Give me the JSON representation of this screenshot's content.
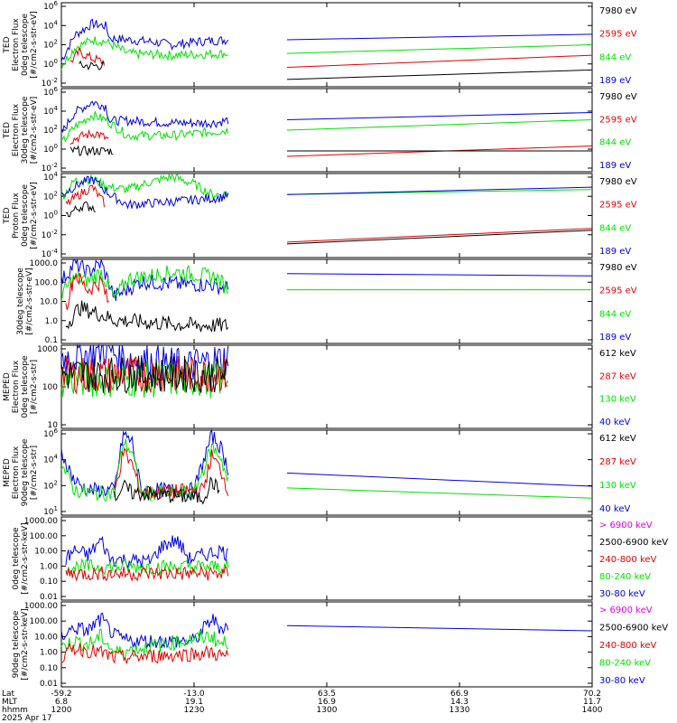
{
  "colors": {
    "black": "#000000",
    "red": "#e00000",
    "green": "#00e000",
    "blue": "#0000e0",
    "magenta": "#e000e0"
  },
  "footer": {
    "row_labels": [
      "Lat",
      "MLT",
      "hhmm",
      "2025 Apr 17"
    ],
    "ticks": [
      {
        "lat": "-59.2",
        "mlt": "6.8",
        "hhmm": "1200"
      },
      {
        "lat": "-13.0",
        "mlt": "19.1",
        "hhmm": "1230"
      },
      {
        "lat": "63.5",
        "mlt": "16.9",
        "hhmm": "1300"
      },
      {
        "lat": "66.9",
        "mlt": "14.3",
        "hhmm": "1330"
      },
      {
        "lat": "70.2",
        "mlt": "11.7",
        "hhmm": "1400"
      }
    ]
  },
  "chart_data": [
    {
      "type": "line",
      "scale": "log",
      "ylabel": [
        "TED",
        "Electron Flux",
        "0deg telescope",
        "[#/cm2-s-str-eV]"
      ],
      "yticks": [
        "10^6",
        "10^4",
        "10^2",
        "10^0",
        "10^-2"
      ],
      "ylim": [
        0.01,
        1000000
      ],
      "legend": [
        {
          "name": "7980 eV",
          "color": "black"
        },
        {
          "name": "2595 eV",
          "color": "red"
        },
        {
          "name": "844 eV",
          "color": "green"
        },
        {
          "name": "189 eV",
          "color": "blue"
        }
      ],
      "series": [
        {
          "name": "189 eV",
          "color": "blue",
          "x": [
            1200,
            1203,
            1207,
            1210,
            1211,
            1215,
            1220,
            1225,
            1231,
            1238
          ],
          "y": [
            3,
            800,
            10000,
            6000,
            400,
            300,
            200,
            100,
            200,
            300
          ],
          "tail": [
            300,
            1000
          ]
        },
        {
          "name": "844 eV",
          "color": "green",
          "x": [
            1200,
            1203,
            1207,
            1210,
            1215,
            1225,
            1238
          ],
          "y": [
            1,
            50,
            300,
            200,
            15,
            10,
            15
          ],
          "tail": [
            15,
            100
          ]
        },
        {
          "name": "2595 eV",
          "color": "red",
          "x": [
            1202,
            1204,
            1207,
            1210
          ],
          "y": [
            2,
            20,
            5,
            2
          ],
          "tail": [
            0.7,
            10
          ]
        },
        {
          "name": "7980 eV",
          "color": "black",
          "x": [
            1204,
            1210
          ],
          "y": [
            1,
            1
          ],
          "tail": [
            0.05,
            0.4
          ]
        }
      ]
    },
    {
      "type": "line",
      "scale": "log",
      "ylabel": [
        "TED",
        "Electron Flux",
        "30deg telescope",
        "[#/cm2-s-str-eV]"
      ],
      "yticks": [
        "10^6",
        "10^4",
        "10^2",
        "10^0",
        "10^-2"
      ],
      "ylim": [
        0.01,
        1000000
      ],
      "legend": [
        {
          "name": "7980 eV",
          "color": "black"
        },
        {
          "name": "2595 eV",
          "color": "red"
        },
        {
          "name": "844 eV",
          "color": "green"
        },
        {
          "name": "189 eV",
          "color": "blue"
        }
      ],
      "series": [
        {
          "name": "189 eV",
          "color": "blue",
          "x": [
            1200,
            1203,
            1207,
            1210,
            1211,
            1215,
            1225,
            1235,
            1238
          ],
          "y": [
            50,
            5000,
            50000,
            20000,
            800,
            800,
            500,
            500,
            1000
          ],
          "tail": [
            1000,
            5000
          ]
        },
        {
          "name": "844 eV",
          "color": "green",
          "x": [
            1200,
            1203,
            1207,
            1210,
            1215,
            1225,
            1238
          ],
          "y": [
            5,
            200,
            3000,
            1000,
            30,
            30,
            100
          ],
          "tail": [
            100,
            1000
          ]
        },
        {
          "name": "2595 eV",
          "color": "red",
          "x": [
            1202,
            1205,
            1208,
            1211
          ],
          "y": [
            10,
            30,
            50,
            10
          ],
          "tail": [
            0.3,
            3
          ]
        },
        {
          "name": "7980 eV",
          "color": "black",
          "x": [
            1202,
            1212
          ],
          "y": [
            1,
            1
          ],
          "tail": [
            1,
            1
          ]
        }
      ]
    },
    {
      "type": "line",
      "scale": "log",
      "ylabel": [
        "TED",
        "Proton Flux",
        "0deg telescope",
        "[#/cm2-s-str-eV]"
      ],
      "yticks": [
        "10^4",
        "10^2",
        "10^0",
        "10^-2",
        "10^-4"
      ],
      "ylim": [
        0.0001,
        10000
      ],
      "legend": [
        {
          "name": "7980 eV",
          "color": "black"
        },
        {
          "name": "2595 eV",
          "color": "red"
        },
        {
          "name": "844 eV",
          "color": "green"
        },
        {
          "name": "189 eV",
          "color": "blue"
        }
      ],
      "series": [
        {
          "name": "844 eV",
          "color": "green",
          "x": [
            1200,
            1203,
            1207,
            1211,
            1215,
            1220,
            1225,
            1230,
            1234,
            1238
          ],
          "y": [
            50,
            2000,
            3000,
            500,
            300,
            1500,
            5000,
            1000,
            100,
            100
          ],
          "tail": [
            100,
            300
          ]
        },
        {
          "name": "189 eV",
          "color": "blue",
          "x": [
            1200,
            1204,
            1207,
            1211,
            1215,
            1236,
            1238
          ],
          "y": [
            100,
            1000,
            3000,
            100,
            10,
            50,
            100
          ],
          "tail": [
            100,
            500
          ]
        },
        {
          "name": "2595 eV",
          "color": "red",
          "x": [
            1201,
            1204,
            1207,
            1210
          ],
          "y": [
            10,
            100,
            500,
            10
          ],
          "tail": [
            0.003,
            0.06
          ]
        },
        {
          "name": "7980 eV",
          "color": "black",
          "x": [
            1201,
            1205,
            1208
          ],
          "y": [
            1,
            10,
            5
          ],
          "tail": [
            0.002,
            0.04
          ]
        }
      ]
    },
    {
      "type": "line",
      "scale": "log",
      "ylabel": [
        "",
        "30deg telescope",
        "[#/cm2-s-str-eV]"
      ],
      "yticks": [
        "1000.0",
        "100.0",
        "10.0",
        "1.0",
        "0.1"
      ],
      "ylim": [
        0.1,
        5000
      ],
      "legend": [
        {
          "name": "7980 eV",
          "color": "black"
        },
        {
          "name": "2595 eV",
          "color": "red"
        },
        {
          "name": "844 eV",
          "color": "green"
        },
        {
          "name": "189 eV",
          "color": "blue"
        }
      ],
      "series": [
        {
          "name": "189 eV",
          "color": "blue",
          "x": [
            1200,
            1203,
            1206,
            1209,
            1212,
            1218,
            1226,
            1234,
            1238
          ],
          "y": [
            300,
            3000,
            1000,
            3000,
            40,
            300,
            200,
            200,
            100
          ],
          "tail": [
            800,
            600
          ]
        },
        {
          "name": "844 eV",
          "color": "green",
          "x": [
            1200,
            1203,
            1206,
            1209,
            1212,
            1215,
            1226,
            1235,
            1238
          ],
          "y": [
            50,
            500,
            300,
            1000,
            30,
            400,
            1000,
            500,
            100
          ],
          "tail": [
            100,
            100
          ]
        },
        {
          "name": "2595 eV",
          "color": "red",
          "x": [
            1201,
            1203,
            1206,
            1209,
            1211
          ],
          "y": [
            10,
            800,
            100,
            300,
            10
          ],
          "tail": []
        },
        {
          "name": "7980 eV",
          "color": "black",
          "x": [
            1201,
            1204,
            1208,
            1212,
            1230,
            1238
          ],
          "y": [
            1,
            10,
            5,
            2,
            1,
            1
          ],
          "tail": []
        }
      ]
    },
    {
      "type": "line",
      "scale": "log",
      "ylabel": [
        "MEPED",
        "Electron Flux",
        "0deg telescope",
        "[#/cm2-s-str]"
      ],
      "yticks": [
        "1000",
        "100",
        "10"
      ],
      "ylim": [
        10,
        1000
      ],
      "legend": [
        {
          "name": "612 keV",
          "color": "black"
        },
        {
          "name": "287 keV",
          "color": "red"
        },
        {
          "name": "130 keV",
          "color": "green"
        },
        {
          "name": "40 keV",
          "color": "blue"
        }
      ],
      "series": [
        {
          "name": "40 keV",
          "color": "blue",
          "x": [
            1200,
            1206,
            1210,
            1215,
            1220,
            1228,
            1238
          ],
          "y": [
            500,
            600,
            800,
            500,
            400,
            300,
            500
          ],
          "tail": []
        },
        {
          "name": "130 keV",
          "color": "green",
          "x": [
            1200,
            1238
          ],
          "y": [
            150,
            150
          ],
          "tail": []
        },
        {
          "name": "287 keV",
          "color": "red",
          "x": [
            1200,
            1238
          ],
          "y": [
            200,
            200
          ],
          "tail": []
        },
        {
          "name": "612 keV",
          "color": "black",
          "x": [
            1200,
            1238
          ],
          "y": [
            200,
            200
          ],
          "tail": []
        }
      ]
    },
    {
      "type": "line",
      "scale": "log",
      "ylabel": [
        "MEPED",
        "Electron Flux",
        "90deg telescope",
        "[#/cm2-s-str]"
      ],
      "yticks": [
        "10^6",
        "10^4",
        "10^2",
        "10^1"
      ],
      "ylim": [
        10,
        1000000
      ],
      "legend": [
        {
          "name": "612 keV",
          "color": "black"
        },
        {
          "name": "287 keV",
          "color": "red"
        },
        {
          "name": "130 keV",
          "color": "green"
        },
        {
          "name": "40 keV",
          "color": "blue"
        }
      ],
      "series": [
        {
          "name": "40 keV",
          "color": "blue",
          "x": [
            1200,
            1203,
            1206,
            1212,
            1214,
            1216,
            1218,
            1222,
            1230,
            1234,
            1236,
            1238
          ],
          "y": [
            50000,
            1000,
            300,
            300,
            600000,
            200000,
            300,
            300,
            300,
            500000,
            100000,
            3000
          ],
          "tail": [
            3000,
            500
          ]
        },
        {
          "name": "130 keV",
          "color": "green",
          "x": [
            1200,
            1203,
            1206,
            1212,
            1214,
            1216,
            1218,
            1230,
            1234,
            1236,
            1238
          ],
          "y": [
            10000,
            300,
            200,
            200,
            200000,
            50000,
            200,
            200,
            100000,
            30000,
            400
          ],
          "tail": [
            400,
            100
          ]
        },
        {
          "name": "287 keV",
          "color": "red",
          "x": [
            1212,
            1214,
            1216,
            1218,
            1232,
            1234,
            1236,
            1238
          ],
          "y": [
            200,
            50000,
            10000,
            200,
            300,
            30000,
            5000,
            200
          ],
          "tail": []
        },
        {
          "name": "612 keV",
          "color": "black",
          "x": [
            1212,
            1214,
            1216,
            1232,
            1234,
            1236
          ],
          "y": [
            100,
            500,
            200,
            100,
            1000,
            200
          ],
          "tail": []
        }
      ]
    },
    {
      "type": "line",
      "scale": "log",
      "ylabel": [
        "0deg telescope",
        "[#/cm2-s-str-keV]"
      ],
      "yticks": [
        "1000.00",
        "100.00",
        "10.00",
        "1.00",
        "0.10",
        "0.01"
      ],
      "ylim": [
        0.01,
        1000
      ],
      "legend": [
        {
          "name": "> 6900 keV",
          "color": "magenta"
        },
        {
          "name": "2500-6900 keV",
          "color": "black"
        },
        {
          "name": "240-800 keV",
          "color": "red"
        },
        {
          "name": "80-240 keV",
          "color": "green"
        },
        {
          "name": "30-80 keV",
          "color": "blue"
        }
      ],
      "series": [
        {
          "name": "30-80 keV",
          "color": "blue",
          "x": [
            1201,
            1203,
            1206,
            1209,
            1211,
            1220,
            1223,
            1226,
            1229,
            1236,
            1238
          ],
          "y": [
            3,
            10,
            5,
            40,
            3,
            2,
            20,
            40,
            3,
            10,
            5
          ],
          "tail": []
        },
        {
          "name": "80-240 keV",
          "color": "green",
          "x": [
            1201,
            1211,
            1220,
            1229,
            1236,
            1238
          ],
          "y": [
            1,
            1,
            1,
            1,
            1,
            1
          ],
          "tail": []
        },
        {
          "name": "240-800 keV",
          "color": "red",
          "x": [
            1201,
            1211,
            1220,
            1238
          ],
          "y": [
            0.4,
            0.4,
            0.4,
            0.4
          ],
          "tail": []
        }
      ]
    },
    {
      "type": "line",
      "scale": "log",
      "ylabel": [
        "90deg telescope",
        "[#/cm2-s-str-keV]"
      ],
      "yticks": [
        "1000.00",
        "100.00",
        "10.00",
        "1.00",
        "0.10",
        "0.01"
      ],
      "ylim": [
        0.01,
        1000
      ],
      "legend": [
        {
          "name": "> 6900 keV",
          "color": "magenta"
        },
        {
          "name": "2500-6900 keV",
          "color": "black"
        },
        {
          "name": "240-800 keV",
          "color": "red"
        },
        {
          "name": "80-240 keV",
          "color": "green"
        },
        {
          "name": "30-80 keV",
          "color": "blue"
        }
      ],
      "series": [
        {
          "name": "30-80 keV",
          "color": "blue",
          "x": [
            1200,
            1203,
            1206,
            1209,
            1212,
            1215,
            1230,
            1234,
            1236,
            1238
          ],
          "y": [
            10,
            30,
            20,
            100,
            10,
            5,
            5,
            100,
            30,
            40
          ],
          "tail": [
            40,
            20
          ]
        },
        {
          "name": "80-240 keV",
          "color": "green",
          "x": [
            1200,
            1203,
            1206,
            1209,
            1212,
            1234,
            1236,
            1238
          ],
          "y": [
            2,
            5,
            3,
            10,
            1,
            10,
            3,
            5
          ],
          "tail": []
        },
        {
          "name": "240-800 keV",
          "color": "red",
          "x": [
            1200,
            1203,
            1209,
            1212,
            1234,
            1238
          ],
          "y": [
            0.5,
            2,
            1,
            0.5,
            1,
            0.5
          ],
          "tail": []
        }
      ]
    }
  ]
}
